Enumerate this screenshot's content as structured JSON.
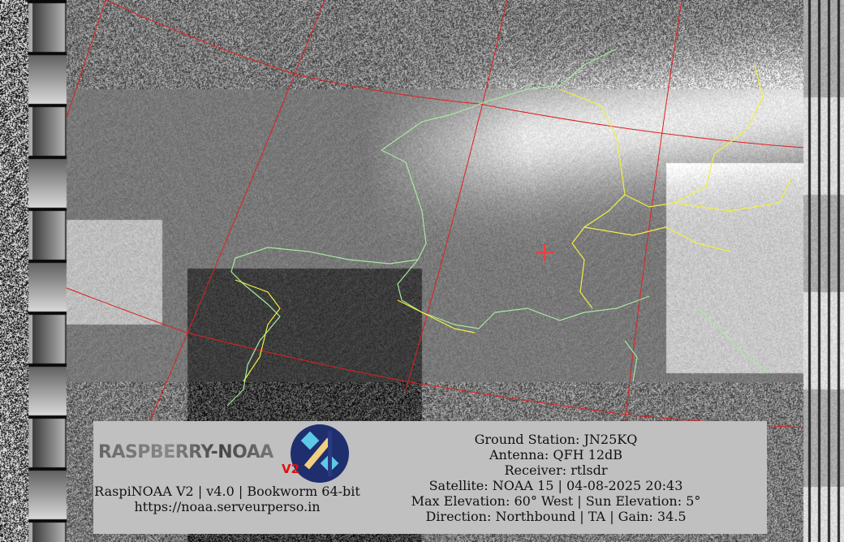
{
  "image": {
    "type": "NOAA APT satellite image with map overlay",
    "graticule_color": "#e02020",
    "coastline_color": "#a8e8a0",
    "border_color": "#f0f040",
    "marker": "crosshair"
  },
  "logo": {
    "text": "RASPBERRY-NOAA",
    "version_badge": "V2",
    "icon": "satellite-icon"
  },
  "info": {
    "software": "RaspiNOAA V2 | v4.0 | Bookworm 64-bit",
    "url": "https://noaa.serveurperso.in",
    "ground_station": "Ground Station: JN25KQ",
    "antenna": "Antenna: QFH 12dB",
    "receiver": "Receiver: rtlsdr",
    "satellite": "Satellite: NOAA 15 | 04-08-2025 20:43",
    "elevation": "Max Elevation: 60° West | Sun Elevation: 5°",
    "direction": "Direction: Northbound | TA | Gain: 34.5"
  }
}
